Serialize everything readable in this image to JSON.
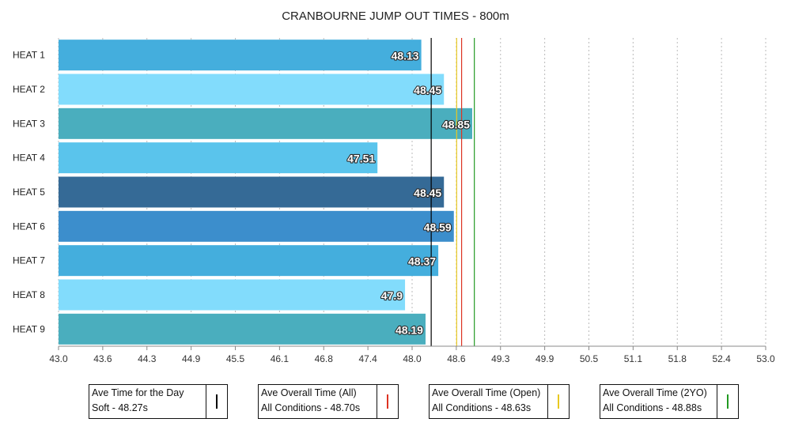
{
  "chart_data": {
    "type": "bar",
    "orientation": "horizontal",
    "title": "CRANBOURNE JUMP OUT TIMES - 800m",
    "categories": [
      "HEAT 1",
      "HEAT 2",
      "HEAT 3",
      "HEAT 4",
      "HEAT 5",
      "HEAT 6",
      "HEAT 7",
      "HEAT 8",
      "HEAT 9"
    ],
    "values": [
      48.13,
      48.45,
      48.85,
      47.51,
      48.45,
      48.59,
      48.37,
      47.9,
      48.19
    ],
    "value_labels": [
      "48.13",
      "48.45",
      "48.85",
      "47.51",
      "48.45",
      "48.59",
      "48.37",
      "47.9",
      "48.19"
    ],
    "bar_colors": [
      "#44aedd",
      "#82dcfc",
      "#4aaebe",
      "#5ac4ec",
      "#356a96",
      "#3c8ecc",
      "#44aedd",
      "#82dcfc",
      "#4aaebe"
    ],
    "xlim": [
      43.0,
      53.0
    ],
    "xticks": [
      "43.0",
      "43.6",
      "44.3",
      "44.9",
      "45.5",
      "46.1",
      "46.8",
      "47.4",
      "48.0",
      "48.6",
      "49.3",
      "49.9",
      "50.5",
      "51.1",
      "51.8",
      "52.4",
      "53.0"
    ],
    "grid": "vertical dotted",
    "reference_lines": [
      {
        "label_line1": "Ave Time for the Day",
        "label_line2": "Soft - 48.27s",
        "value": 48.27,
        "color": "#000000"
      },
      {
        "label_line1": "Ave Overall Time (All)",
        "label_line2": "All Conditions - 48.70s",
        "value": 48.7,
        "color": "#dd3322"
      },
      {
        "label_line1": "Ave Overall Time (Open)",
        "label_line2": "All Conditions - 48.63s",
        "value": 48.63,
        "color": "#e8c820"
      },
      {
        "label_line1": "Ave Overall Time (2YO)",
        "label_line2": "All Conditions - 48.88s",
        "value": 48.88,
        "color": "#229922"
      }
    ],
    "legend_position": "bottom"
  }
}
